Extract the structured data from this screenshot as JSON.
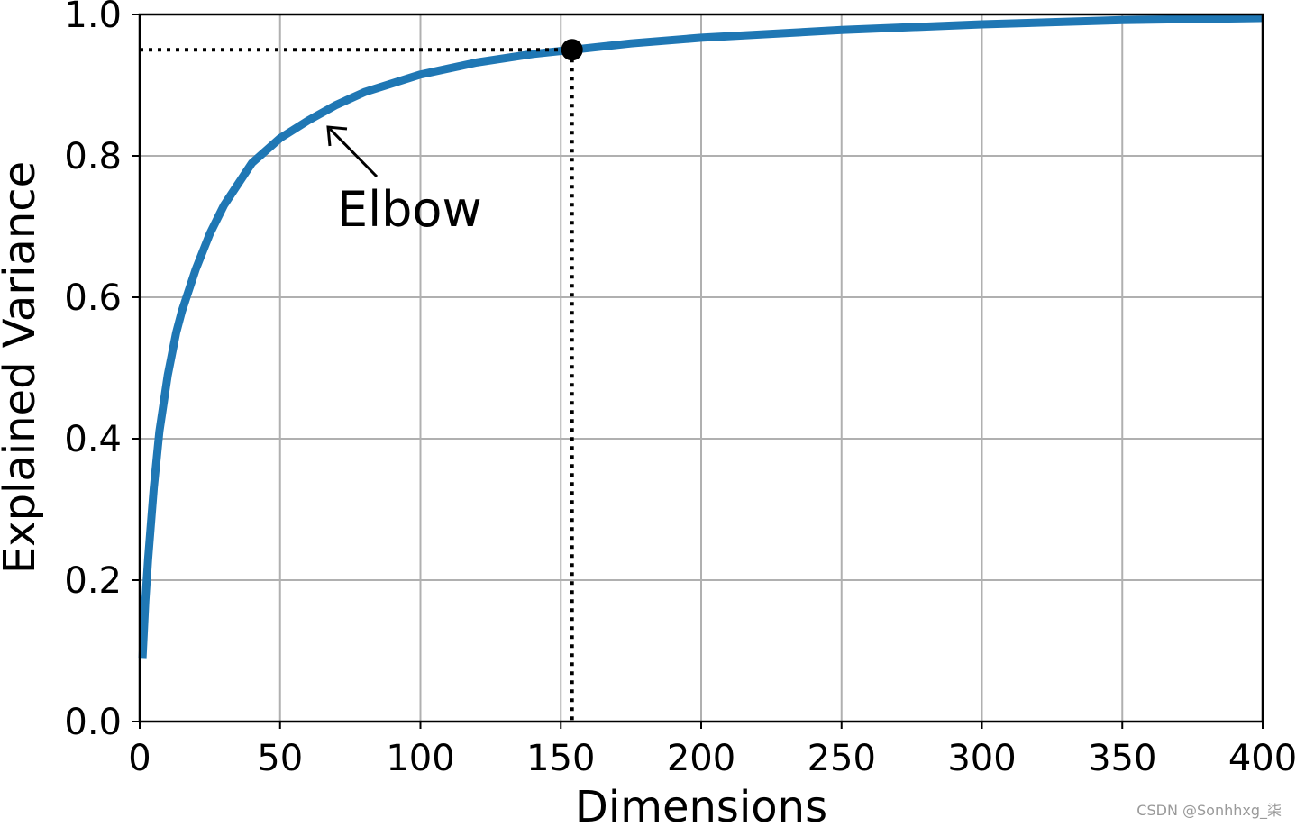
{
  "chart_data": {
    "type": "line",
    "x_label": "Dimensions",
    "y_label": "Explained Variance",
    "x": [
      1,
      2,
      3,
      5,
      7,
      10,
      13,
      15,
      20,
      25,
      30,
      40,
      50,
      60,
      70,
      80,
      100,
      120,
      140,
      154,
      175,
      200,
      250,
      300,
      350,
      400
    ],
    "series": [
      {
        "color": "#1f77b4",
        "values": [
          0.09,
          0.17,
          0.23,
          0.33,
          0.41,
          0.49,
          0.55,
          0.58,
          0.64,
          0.69,
          0.73,
          0.79,
          0.825,
          0.85,
          0.872,
          0.89,
          0.915,
          0.932,
          0.944,
          0.95,
          0.959,
          0.967,
          0.978,
          0.986,
          0.992,
          0.995
        ]
      }
    ],
    "highlight": {
      "x": 154,
      "y": 0.95
    },
    "annotation": "Elbow",
    "xlim": [
      0,
      400
    ],
    "xticks": [
      0,
      50,
      100,
      150,
      200,
      250,
      300,
      350,
      400
    ],
    "ylim": [
      0,
      1
    ],
    "yticks": [
      {
        "value": 0,
        "label": "0.0"
      },
      0.2,
      0.4,
      0.6,
      0.8,
      {
        "value": 1,
        "label": "1.0"
      }
    ],
    "grid": true
  },
  "watermark": "CSDN @Sonhhxg_柒"
}
